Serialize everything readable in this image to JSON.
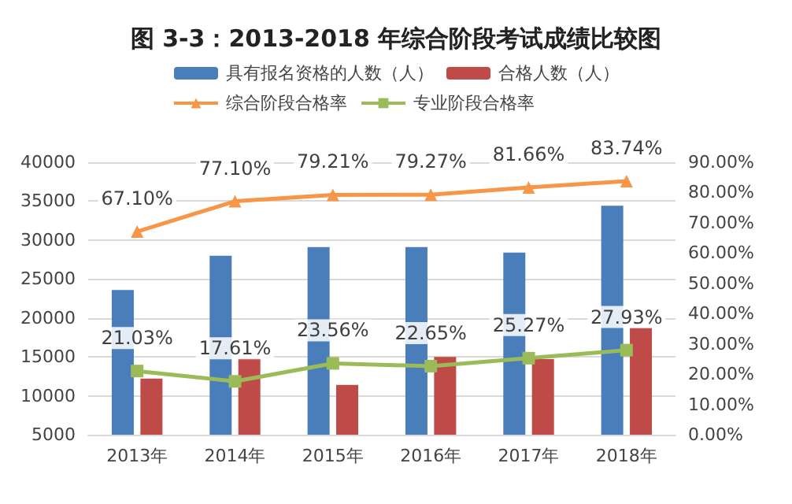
{
  "chart_data": {
    "type": "bar",
    "title": "图 3-3：2013-2018 年综合阶段考试成绩比较图",
    "categories": [
      "2013年",
      "2014年",
      "2015年",
      "2016年",
      "2017年",
      "2018年"
    ],
    "series": [
      {
        "name": "具有报名资格的人数（人）",
        "color": "#4a7ebb",
        "values": [
          23600,
          28000,
          29100,
          29100,
          28400,
          34400
        ]
      },
      {
        "name": "合格人数（人）",
        "color": "#be4b48",
        "values": [
          12200,
          14800,
          11400,
          15000,
          14700,
          18700
        ]
      },
      {
        "name": "综合阶段合格率",
        "type": "line",
        "axis": "y2",
        "marker": "triangle",
        "color": "#f79646",
        "values": [
          67.1,
          77.1,
          79.21,
          79.27,
          81.66,
          83.74
        ],
        "value_labels": [
          "67.10%",
          "77.10%",
          "79.21%",
          "79.27%",
          "81.66%",
          "83.74%"
        ]
      },
      {
        "name": "专业阶段合格率",
        "type": "line",
        "axis": "y2",
        "marker": "square",
        "color": "#9bbb59",
        "values": [
          21.03,
          17.61,
          23.56,
          22.65,
          25.27,
          27.93
        ],
        "value_labels": [
          "21.03%",
          "17.61%",
          "23.56%",
          "22.65%",
          "25.27%",
          "27.93%"
        ]
      }
    ],
    "ylim": [
      5000,
      40000
    ],
    "yticks": [
      5000,
      10000,
      15000,
      20000,
      25000,
      30000,
      35000,
      40000
    ],
    "y2lim": [
      0,
      90
    ],
    "y2ticks": [
      {
        "value": 0,
        "label": "0.00%"
      },
      {
        "value": 10,
        "label": "10.00%"
      },
      {
        "value": 20,
        "label": "20.00%"
      },
      {
        "value": 30,
        "label": "30.00%"
      },
      {
        "value": 40,
        "label": "40.00%"
      },
      {
        "value": 50,
        "label": "50.00%"
      },
      {
        "value": 60,
        "label": "60.00%"
      },
      {
        "value": 70,
        "label": "70.00%"
      },
      {
        "value": 80,
        "label": "80.00%"
      },
      {
        "value": 90,
        "label": "90.00%"
      }
    ],
    "grid": "y",
    "legend": "top"
  }
}
